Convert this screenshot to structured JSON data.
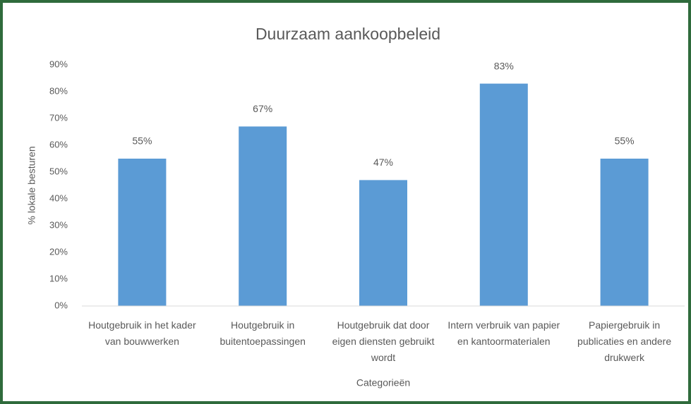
{
  "chart_data": {
    "type": "bar",
    "title": "Duurzaam aankoopbeleid",
    "x_label": "Categorieën",
    "y_label": "% lokale besturen",
    "categories": [
      "Houtgebruik in het kader van bouwwerken",
      "Houtgebruik in buitentoepassingen",
      "Houtgebruik dat door eigen diensten gebruikt wordt",
      "Intern verbruik van papier en kantoormaterialen",
      "Papiergebruik in publicaties en andere drukwerk"
    ],
    "values": [
      55,
      67,
      47,
      83,
      55
    ],
    "value_labels": [
      "55%",
      "67%",
      "47%",
      "83%",
      "55%"
    ],
    "color": "#5b9bd5",
    "ylim": [
      0,
      90
    ],
    "yticks": [
      {
        "value": 0,
        "label": "0%"
      },
      {
        "value": 10,
        "label": "10%"
      },
      {
        "value": 20,
        "label": "20%"
      },
      {
        "value": 30,
        "label": "30%"
      },
      {
        "value": 40,
        "label": "40%"
      },
      {
        "value": 50,
        "label": "50%"
      },
      {
        "value": 60,
        "label": "60%"
      },
      {
        "value": 70,
        "label": "70%"
      },
      {
        "value": 80,
        "label": "80%"
      },
      {
        "value": 90,
        "label": "90%"
      }
    ],
    "grid": false
  }
}
